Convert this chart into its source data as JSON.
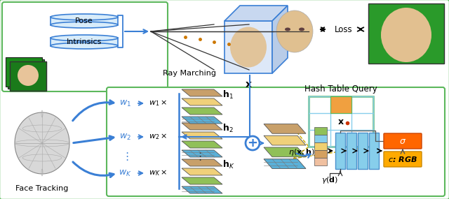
{
  "bg_color": "#ffffff",
  "green": "#5cb85c",
  "blue": "#3a7fd5",
  "light_blue": "#87ceeb",
  "orange": "#ff6600",
  "yellow_orange": "#ffaa00",
  "tan": "#c8a06a",
  "labels": {
    "pose": "Pose",
    "intrinsics": "Intrinsics",
    "ray_marching": "Ray Marching",
    "x_bold": "x",
    "w1": "$w_1$",
    "w2": "$w_2$",
    "wK": "$w_K$",
    "h1": "$\\mathbf{h}_1$",
    "h2": "$\\mathbf{h}_2$",
    "hK": "$\\mathbf{h}_K$",
    "w1x": "$w_1 \\times$",
    "w2x": "$w_2 \\times$",
    "wKx": "$w_K \\times$",
    "hash_query": "Hash Table Query",
    "eta": "$\\eta(\\mathbf{x}; \\mathbf{h})$",
    "gamma": "$\\gamma(\\mathbf{d})$",
    "sigma": "$\\sigma$",
    "c_rgb": "$c$: RGB",
    "face_tracking": "Face Tracking",
    "loss": "Loss",
    "dots": "$\\vdots$"
  }
}
